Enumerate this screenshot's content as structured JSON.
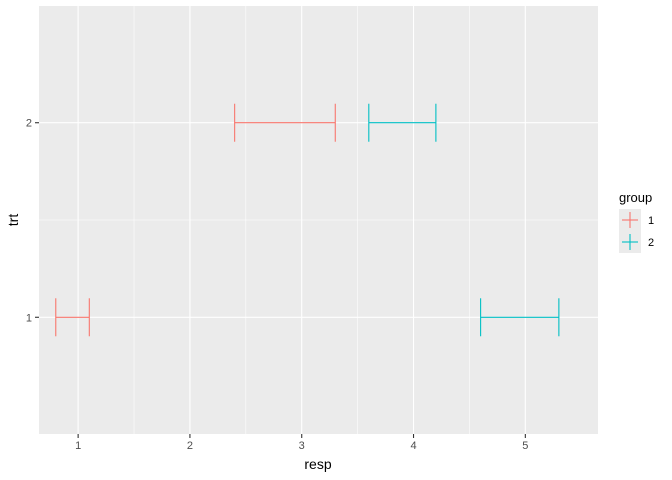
{
  "chart_data": {
    "type": "errorbarh",
    "xlabel": "resp",
    "ylabel": "trt",
    "xlim": [
      0.65,
      5.65
    ],
    "ylim": [
      0.4,
      2.6
    ],
    "x_ticks": [
      1,
      2,
      3,
      4,
      5
    ],
    "y_ticks": [
      1,
      2
    ],
    "x_tick_labels": [
      "1",
      "2",
      "3",
      "4",
      "5"
    ],
    "y_tick_labels": [
      "1",
      "2"
    ],
    "grid": true,
    "legend": {
      "title": "group",
      "position": "right",
      "entries": [
        "1",
        "2"
      ]
    },
    "series": [
      {
        "name": "1",
        "color": "#F8766D",
        "bars": [
          {
            "trt": 1,
            "xmin": 0.8,
            "xmax": 1.1
          },
          {
            "trt": 2,
            "xmin": 2.4,
            "xmax": 3.3
          }
        ]
      },
      {
        "name": "2",
        "color": "#00BFC4",
        "bars": [
          {
            "trt": 1,
            "xmin": 4.6,
            "xmax": 5.3
          },
          {
            "trt": 2,
            "xmin": 3.6,
            "xmax": 4.2
          }
        ]
      }
    ]
  }
}
